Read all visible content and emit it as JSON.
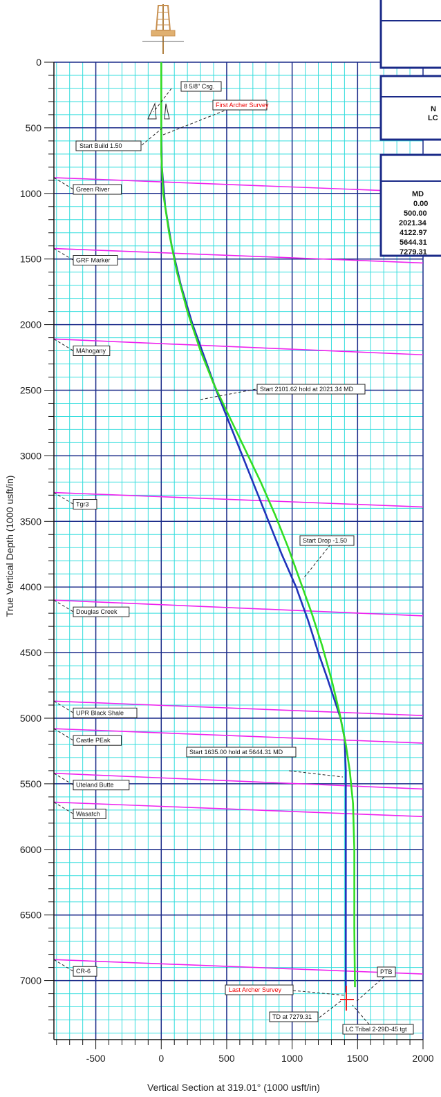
{
  "chart_data": {
    "type": "line",
    "xlabel": "Vertical Section at 319.01° (1000 usft/in)",
    "ylabel": "True Vertical Depth (1000 usft/in)",
    "xlim": [
      -820,
      2000
    ],
    "ylim": [
      0,
      7450
    ],
    "x_ticks": [
      -500,
      0,
      500,
      1000,
      1500,
      2000
    ],
    "y_ticks": [
      0,
      500,
      1000,
      1500,
      2000,
      2500,
      3000,
      3500,
      4000,
      4500,
      5000,
      5500,
      6000,
      6500,
      7000
    ],
    "grid": true,
    "series": [
      {
        "color": "#2233bb",
        "x": [
          0,
          0,
          5,
          30,
          80,
          150,
          240,
          330,
          420,
          520,
          620,
          720,
          820,
          920,
          1030,
          1120,
          1200,
          1270,
          1320,
          1370,
          1400,
          1410,
          1410,
          1410
        ],
        "y": [
          0,
          500,
          800,
          1100,
          1400,
          1700,
          2000,
          2250,
          2500,
          2750,
          3000,
          3250,
          3500,
          3750,
          4000,
          4250,
          4500,
          4700,
          4850,
          5000,
          5150,
          5400,
          6500,
          7090
        ]
      },
      {
        "color": "#33dd22",
        "x": [
          0,
          0,
          15,
          60,
          120,
          200,
          300,
          400,
          520,
          640,
          760,
          870,
          970,
          1060,
          1150,
          1230,
          1300,
          1360,
          1410,
          1440,
          1465,
          1475,
          1475,
          1480
        ],
        "y": [
          0,
          700,
          1000,
          1300,
          1600,
          1900,
          2200,
          2450,
          2700,
          2950,
          3200,
          3450,
          3700,
          3950,
          4200,
          4450,
          4700,
          4950,
          5200,
          5400,
          5650,
          6000,
          6600,
          7050
        ]
      }
    ],
    "formation_tops": [
      {
        "label": "Green River",
        "y_left": 880,
        "y_right": 990
      },
      {
        "label": "GRF Marker",
        "y_left": 1420,
        "y_right": 1530
      },
      {
        "label": "MAhogany",
        "y_left": 2110,
        "y_right": 2230
      },
      {
        "label": "Tgr3",
        "y_left": 3280,
        "y_right": 3390
      },
      {
        "label": "Douglas Creek",
        "y_left": 4100,
        "y_right": 4220
      },
      {
        "label": "UPR Black Shale",
        "y_left": 4870,
        "y_right": 4980
      },
      {
        "label": "Castle PEak",
        "y_left": 5080,
        "y_right": 5190
      },
      {
        "label": "Uteland Butte",
        "y_left": 5420,
        "y_right": 5540
      },
      {
        "label": "Wasatch",
        "y_left": 5640,
        "y_right": 5750
      },
      {
        "label": "CR-6",
        "y_left": 6840,
        "y_right": 6950
      }
    ],
    "annotations": [
      {
        "text": "8 5/8\" Csg.",
        "color": "#111111"
      },
      {
        "text": "First Archer Survey",
        "color": "#ee0000"
      },
      {
        "text": "Start Build 1.50",
        "color": "#111111"
      },
      {
        "text": "Start 2101.62 hold at 2021.34 MD",
        "color": "#111111"
      },
      {
        "text": "Start Drop -1.50",
        "color": "#111111"
      },
      {
        "text": "Start 1635.00 hold at 5644.31 MD",
        "color": "#111111"
      },
      {
        "text": "PTB",
        "color": "#111111"
      },
      {
        "text": "Last Archer Survey",
        "color": "#ee0000"
      },
      {
        "text": "TD at 7279.31",
        "color": "#111111"
      },
      {
        "text": "LC Tribal 2-29D-45 tgt",
        "color": "#111111"
      }
    ],
    "colors": {
      "grid_minor": "#33dddd",
      "grid_major": "#1a2a88",
      "formation": "#ee22ee"
    }
  },
  "table": {
    "partial_1": "N",
    "partial_2": "LC",
    "header": "MD",
    "rows": [
      "0.00",
      "500.00",
      "2021.34",
      "4122.97",
      "5644.31",
      "7279.31"
    ]
  }
}
